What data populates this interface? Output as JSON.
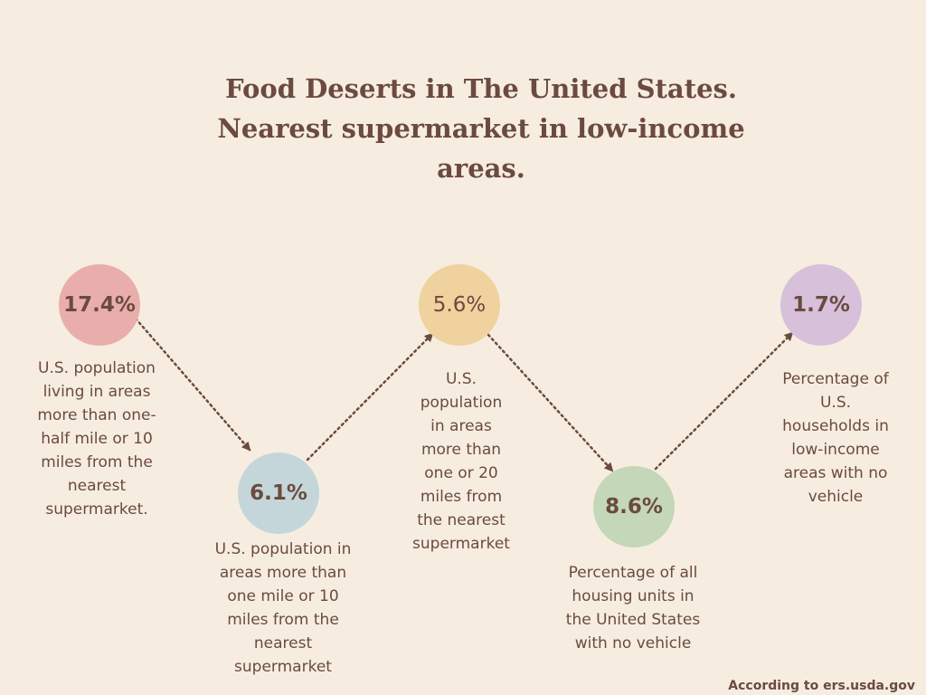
{
  "title": {
    "line1": "Food Deserts in The United States.",
    "line2": "Nearest supermarket in low-income",
    "line3": "areas."
  },
  "stats": [
    {
      "value": "17.4%",
      "description": "U.S. population living in areas more than one-half mile or 10 miles from the nearest supermarket.",
      "color": "#e9aeab"
    },
    {
      "value": "6.1%",
      "description": "U.S. population in areas more than one mile or 10 miles from the nearest supermarket",
      "color": "#c4d6da"
    },
    {
      "value": "5.6%",
      "description": "U.S. population in areas more than one or 20 miles from the nearest supermarket",
      "color": "#f0d29f"
    },
    {
      "value": "8.6%",
      "description": "Percentage of all housing units in the United States with no vehicle",
      "color": "#c4d7b8"
    },
    {
      "value": "1.7%",
      "description": "Percentage of U.S. households in low-income areas with no vehicle",
      "color": "#d7c0da"
    }
  ],
  "source": "According to ers.usda.gov",
  "colors": {
    "background": "#f6ede0",
    "text": "#6b4a3f",
    "arrow": "#6b4a3f"
  }
}
